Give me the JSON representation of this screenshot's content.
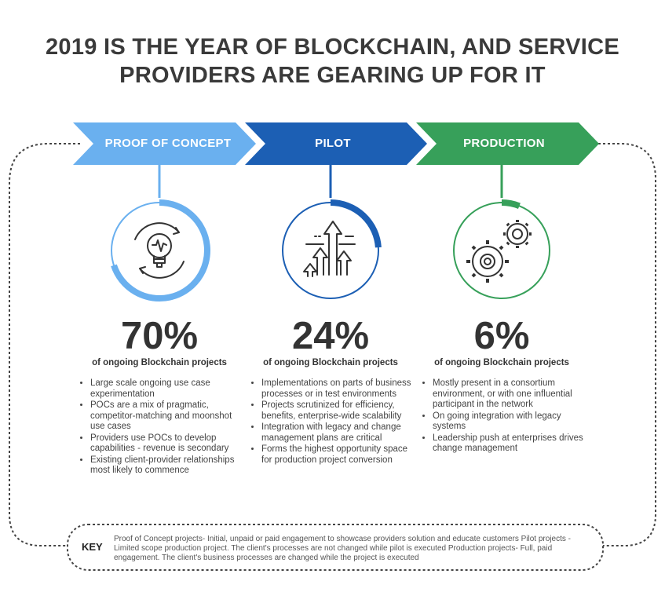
{
  "title": {
    "line1": "2019 IS THE YEAR OF BLOCKCHAIN, AND SERVICE",
    "line2": "PROVIDERS ARE GEARING UP FOR IT"
  },
  "colors": {
    "poc": "#6ab0ef",
    "pilot": "#1c5fb4",
    "production": "#37a05a",
    "text": "#333333"
  },
  "stages": [
    {
      "label": "PROOF OF CONCEPT",
      "percent": "70%",
      "share": 0.7,
      "caption": "of ongoing Blockchain projects",
      "icon": "lightbulb-cycle-icon",
      "bullets": [
        "Large scale ongoing use case experimentation",
        "POCs are a mix of pragmatic, competitor-matching and moonshot use cases",
        "Providers use POCs to develop capabilities - revenue is secondary",
        "Existing client-provider relationships most likely to commence"
      ]
    },
    {
      "label": "PILOT",
      "percent": "24%",
      "share": 0.24,
      "caption": "of ongoing Blockchain projects",
      "icon": "rising-arrows-icon",
      "bullets": [
        "Implementations on parts of business processes or in test environments",
        "Projects scrutinized for efficiency, benefits,  enterprise-wide scalability",
        "Integration with legacy and change management plans are critical",
        "Forms the highest opportunity space for production project conversion"
      ]
    },
    {
      "label": "PRODUCTION",
      "percent": "6%",
      "share": 0.06,
      "caption": "of ongoing Blockchain projects",
      "icon": "gears-icon",
      "bullets": [
        "Mostly present in a consortium environment, or with one influential participant in the network",
        "On going integration with legacy systems",
        "Leadership push at enterprises drives change management"
      ]
    }
  ],
  "key": {
    "label": "KEY",
    "text": "Proof of Concept projects- Initial, unpaid or paid engagement to showcase providers solution and educate customers Pilot projects - Limited scope production project. The client's processes are not changed while pilot is executed Production projects- Full, paid engagement. The client's business processes are changed while the project is executed"
  }
}
